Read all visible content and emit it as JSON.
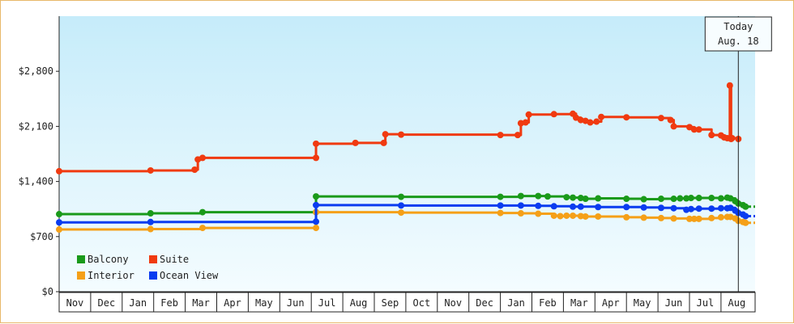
{
  "chart_data": {
    "type": "line",
    "title": "",
    "xlabel": "",
    "ylabel": "",
    "ylim": [
      0,
      3500
    ],
    "y_ticks": [
      {
        "value": 0,
        "label": "$0"
      },
      {
        "value": 700,
        "label": "$700"
      },
      {
        "value": 1400,
        "label": "$1,400"
      },
      {
        "value": 2100,
        "label": "$2,100"
      },
      {
        "value": 2800,
        "label": "$2,800"
      }
    ],
    "x_range": [
      0,
      21.6
    ],
    "x_ticks": [
      "Nov",
      "Dec",
      "Jan",
      "Feb",
      "Mar",
      "Apr",
      "May",
      "Jun",
      "Jul",
      "Aug",
      "Sep",
      "Oct",
      "Nov",
      "Dec",
      "Jan",
      "Feb",
      "Mar",
      "Apr",
      "May",
      "Jun",
      "Jul",
      "Aug"
    ],
    "today": {
      "line1": "Today",
      "line2": "Aug. 18",
      "x": 21.55
    },
    "legend_position": "bottom-left",
    "grid": false,
    "series": [
      {
        "name": "Balcony",
        "color": "#1a9a1a",
        "points": [
          [
            0,
            985
          ],
          [
            2.9,
            995
          ],
          [
            4.55,
            1010
          ],
          [
            8.15,
            1010
          ],
          [
            8.15,
            1210
          ],
          [
            10.85,
            1205
          ],
          [
            14.0,
            1205
          ],
          [
            14.65,
            1215
          ],
          [
            15.2,
            1215
          ],
          [
            15.5,
            1210
          ],
          [
            16.1,
            1200
          ],
          [
            16.3,
            1195
          ],
          [
            16.55,
            1190
          ],
          [
            16.7,
            1180
          ],
          [
            17.1,
            1185
          ],
          [
            18.0,
            1180
          ],
          [
            18.55,
            1175
          ],
          [
            19.1,
            1180
          ],
          [
            19.5,
            1180
          ],
          [
            19.7,
            1185
          ],
          [
            19.9,
            1185
          ],
          [
            20.05,
            1190
          ],
          [
            20.3,
            1190
          ],
          [
            20.7,
            1190
          ],
          [
            21.0,
            1185
          ],
          [
            21.2,
            1195
          ],
          [
            21.3,
            1185
          ],
          [
            21.45,
            1150
          ],
          [
            21.55,
            1120
          ],
          [
            21.7,
            1100
          ],
          [
            21.78,
            1080
          ]
        ],
        "current": 1080
      },
      {
        "name": "Suite",
        "color": "#f03a10",
        "points": [
          [
            0,
            1530
          ],
          [
            2.9,
            1540
          ],
          [
            4.3,
            1550
          ],
          [
            4.4,
            1680
          ],
          [
            4.55,
            1700
          ],
          [
            8.15,
            1700
          ],
          [
            8.15,
            1880
          ],
          [
            9.4,
            1890
          ],
          [
            10.3,
            1890
          ],
          [
            10.35,
            2000
          ],
          [
            10.85,
            1995
          ],
          [
            14.0,
            1990
          ],
          [
            14.55,
            1990
          ],
          [
            14.65,
            2140
          ],
          [
            14.8,
            2150
          ],
          [
            14.9,
            2250
          ],
          [
            15.7,
            2255
          ],
          [
            16.3,
            2260
          ],
          [
            16.4,
            2210
          ],
          [
            16.55,
            2180
          ],
          [
            16.7,
            2170
          ],
          [
            16.85,
            2150
          ],
          [
            17.05,
            2160
          ],
          [
            17.2,
            2220
          ],
          [
            18.0,
            2215
          ],
          [
            19.1,
            2205
          ],
          [
            19.4,
            2180
          ],
          [
            19.5,
            2100
          ],
          [
            20.0,
            2090
          ],
          [
            20.15,
            2060
          ],
          [
            20.3,
            2060
          ],
          [
            20.7,
            1990
          ],
          [
            21.0,
            1985
          ],
          [
            21.1,
            1960
          ],
          [
            21.2,
            1950
          ],
          [
            21.28,
            2620
          ],
          [
            21.32,
            1940
          ],
          [
            21.35,
            1950
          ],
          [
            21.55,
            1940
          ]
        ],
        "current": null
      },
      {
        "name": "Interior",
        "color": "#f5a018",
        "points": [
          [
            0,
            790
          ],
          [
            2.9,
            795
          ],
          [
            4.55,
            810
          ],
          [
            8.15,
            810
          ],
          [
            8.15,
            1010
          ],
          [
            10.85,
            1005
          ],
          [
            14.0,
            1000
          ],
          [
            14.65,
            995
          ],
          [
            15.2,
            990
          ],
          [
            15.7,
            965
          ],
          [
            15.9,
            960
          ],
          [
            16.1,
            965
          ],
          [
            16.3,
            965
          ],
          [
            16.55,
            960
          ],
          [
            16.7,
            955
          ],
          [
            17.1,
            955
          ],
          [
            18.0,
            945
          ],
          [
            18.55,
            940
          ],
          [
            19.1,
            935
          ],
          [
            19.5,
            930
          ],
          [
            20.0,
            925
          ],
          [
            20.15,
            925
          ],
          [
            20.3,
            925
          ],
          [
            20.7,
            935
          ],
          [
            21.0,
            945
          ],
          [
            21.2,
            950
          ],
          [
            21.3,
            950
          ],
          [
            21.45,
            930
          ],
          [
            21.55,
            900
          ],
          [
            21.7,
            885
          ],
          [
            21.78,
            875
          ]
        ],
        "current": 875
      },
      {
        "name": "Ocean View",
        "color": "#0a3cf0",
        "points": [
          [
            0,
            880
          ],
          [
            2.9,
            885
          ],
          [
            8.15,
            890
          ],
          [
            8.15,
            1100
          ],
          [
            10.85,
            1095
          ],
          [
            14.0,
            1095
          ],
          [
            14.65,
            1095
          ],
          [
            15.2,
            1090
          ],
          [
            15.7,
            1085
          ],
          [
            16.3,
            1080
          ],
          [
            16.55,
            1080
          ],
          [
            17.1,
            1075
          ],
          [
            18.0,
            1075
          ],
          [
            18.55,
            1070
          ],
          [
            19.1,
            1065
          ],
          [
            19.5,
            1060
          ],
          [
            19.9,
            1040
          ],
          [
            20.05,
            1050
          ],
          [
            20.3,
            1055
          ],
          [
            20.7,
            1055
          ],
          [
            21.0,
            1060
          ],
          [
            21.2,
            1060
          ],
          [
            21.3,
            1065
          ],
          [
            21.45,
            1030
          ],
          [
            21.55,
            1000
          ],
          [
            21.7,
            980
          ],
          [
            21.78,
            960
          ]
        ],
        "current": 960
      }
    ]
  }
}
